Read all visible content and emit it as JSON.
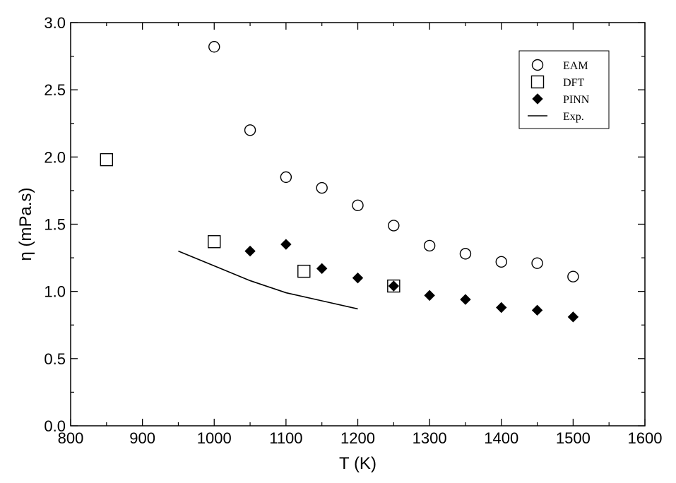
{
  "chart_data": {
    "type": "scatter",
    "title": "",
    "xlabel": "T (K)",
    "ylabel": "η (mPa.s)",
    "xlim": [
      800,
      1600
    ],
    "ylim": [
      0.0,
      3.0
    ],
    "grid": false,
    "legend_position": "top-right",
    "x_ticks": [
      800,
      900,
      1000,
      1100,
      1200,
      1300,
      1400,
      1500,
      1600
    ],
    "y_ticks": [
      0.0,
      0.5,
      1.0,
      1.5,
      2.0,
      2.5,
      3.0
    ],
    "x_tick_labels": [
      "800",
      "900",
      "1000",
      "1100",
      "1200",
      "1300",
      "1400",
      "1500",
      "1600"
    ],
    "y_tick_labels": [
      "0.0",
      "0.5",
      "1.0",
      "1.5",
      "2.0",
      "2.5",
      "3.0"
    ],
    "series": [
      {
        "name": "EAM",
        "marker": "open-circle",
        "x": [
          1000,
          1050,
          1100,
          1150,
          1200,
          1250,
          1300,
          1350,
          1400,
          1450,
          1500
        ],
        "y": [
          2.82,
          2.2,
          1.85,
          1.77,
          1.64,
          1.49,
          1.34,
          1.28,
          1.22,
          1.21,
          1.11
        ]
      },
      {
        "name": "DFT",
        "marker": "open-square",
        "x": [
          850,
          1000,
          1125,
          1250
        ],
        "y": [
          1.98,
          1.37,
          1.15,
          1.04
        ]
      },
      {
        "name": "PINN",
        "marker": "filled-diamond",
        "x": [
          1050,
          1100,
          1150,
          1200,
          1250,
          1300,
          1350,
          1400,
          1450,
          1500
        ],
        "y": [
          1.3,
          1.35,
          1.17,
          1.1,
          1.04,
          0.97,
          0.94,
          0.88,
          0.86,
          0.81
        ]
      },
      {
        "name": "Exp.",
        "marker": "line",
        "x": [
          950,
          1000,
          1050,
          1100,
          1150,
          1200
        ],
        "y": [
          1.3,
          1.19,
          1.08,
          0.99,
          0.93,
          0.87
        ]
      }
    ]
  }
}
